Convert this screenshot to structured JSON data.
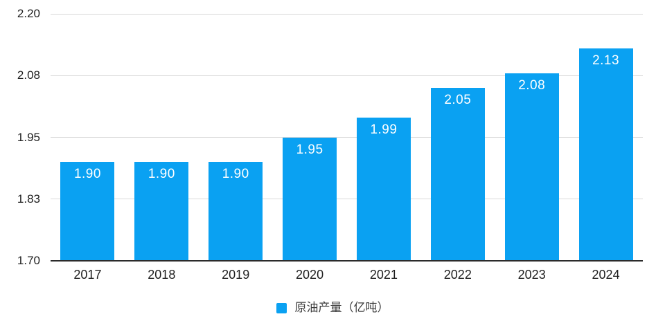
{
  "chart_data": {
    "type": "bar",
    "title": "",
    "xlabel": "",
    "ylabel": "",
    "categories": [
      "2017",
      "2018",
      "2019",
      "2020",
      "2021",
      "2022",
      "2023",
      "2024"
    ],
    "values": [
      1.9,
      1.9,
      1.9,
      1.95,
      1.99,
      2.05,
      2.08,
      2.13
    ],
    "value_label_format": "2-decimals",
    "ylim": [
      1.7,
      2.2
    ],
    "y_ticks": [
      {
        "value": 2.2,
        "label": "2.20"
      },
      {
        "value": 2.075,
        "label": "2.08"
      },
      {
        "value": 1.95,
        "label": "1.95"
      },
      {
        "value": 1.825,
        "label": "1.83"
      },
      {
        "value": 1.7,
        "label": "1.70"
      }
    ],
    "grid": true,
    "legend": {
      "label": "原油产量（亿吨）",
      "position": "bottom-center"
    },
    "colors": {
      "bar": "#0aa1f2",
      "bar_value_label": "#ffffff",
      "gridline": "#d8d8d8",
      "axis_line": "#2b2b2b",
      "tick_label": "#1e1e1e",
      "legend_text": "#3c3c3c",
      "background": "#ffffff"
    }
  }
}
